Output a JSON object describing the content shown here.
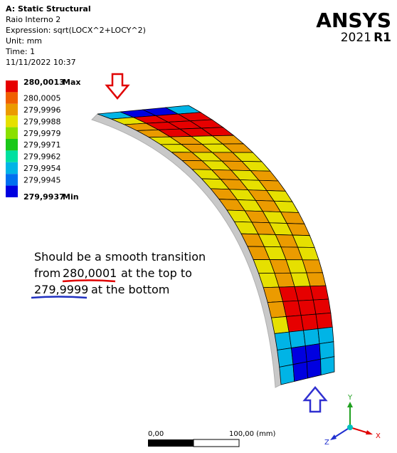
{
  "header": {
    "title": "A: Static Structural",
    "lines": [
      "Raio Interno 2",
      "Expression: sqrt(LOCX^2+LOCY^2)",
      "Unit: mm",
      "Time: 1",
      "11/11/2022 10:37"
    ]
  },
  "logo": {
    "brand": "ANSYS",
    "year": "2021",
    "release": "R1"
  },
  "legend": {
    "levels": [
      {
        "label": "280,0013",
        "tag": "Max",
        "color": "#e60000"
      },
      {
        "label": "280,0005",
        "color": "#f06000"
      },
      {
        "label": "279,9996",
        "color": "#eb9b00"
      },
      {
        "label": "279,9988",
        "color": "#e6e000"
      },
      {
        "label": "279,9979",
        "color": "#8ae000"
      },
      {
        "label": "279,9971",
        "color": "#19c819"
      },
      {
        "label": "279,9962",
        "color": "#00e0a0"
      },
      {
        "label": "279,9954",
        "color": "#00b4e6"
      },
      {
        "label": "279,9945",
        "color": "#0070f0"
      },
      {
        "label": "279,9937",
        "tag": "Min",
        "color": "#0000e0"
      }
    ]
  },
  "annotation": {
    "line1": "Should be a smooth transition",
    "from": "from",
    "top_value": "280,0001",
    "top_text": "at the top to",
    "bottom_value": "279,9999",
    "bottom_text": "at the bottom"
  },
  "scale_bar": {
    "start": "0,00",
    "end": "100,00 (mm)"
  },
  "triad": {
    "y": "Y",
    "x": "X",
    "z": "Z"
  }
}
